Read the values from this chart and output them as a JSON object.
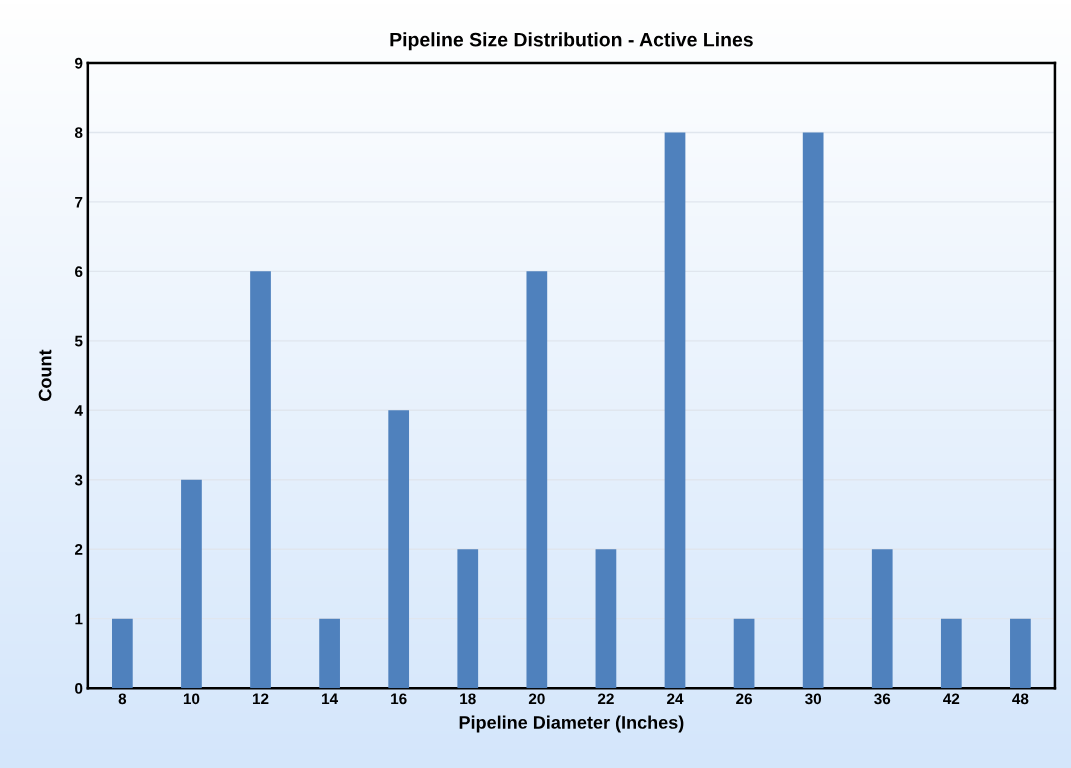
{
  "chart_data": {
    "type": "bar",
    "title": "Pipeline Size Distribution - Active Lines",
    "xlabel": "Pipeline Diameter (Inches)",
    "ylabel": "Count",
    "categories": [
      "8",
      "10",
      "12",
      "14",
      "16",
      "18",
      "20",
      "22",
      "24",
      "26",
      "30",
      "36",
      "42",
      "48"
    ],
    "values": [
      1,
      3,
      6,
      1,
      4,
      2,
      6,
      2,
      8,
      1,
      8,
      2,
      1,
      1
    ],
    "color": "#4f81bd",
    "ylim": [
      0,
      9
    ],
    "yticks": [
      0,
      1,
      2,
      3,
      4,
      5,
      6,
      7,
      8,
      9
    ],
    "grid": "y",
    "legend": false
  }
}
